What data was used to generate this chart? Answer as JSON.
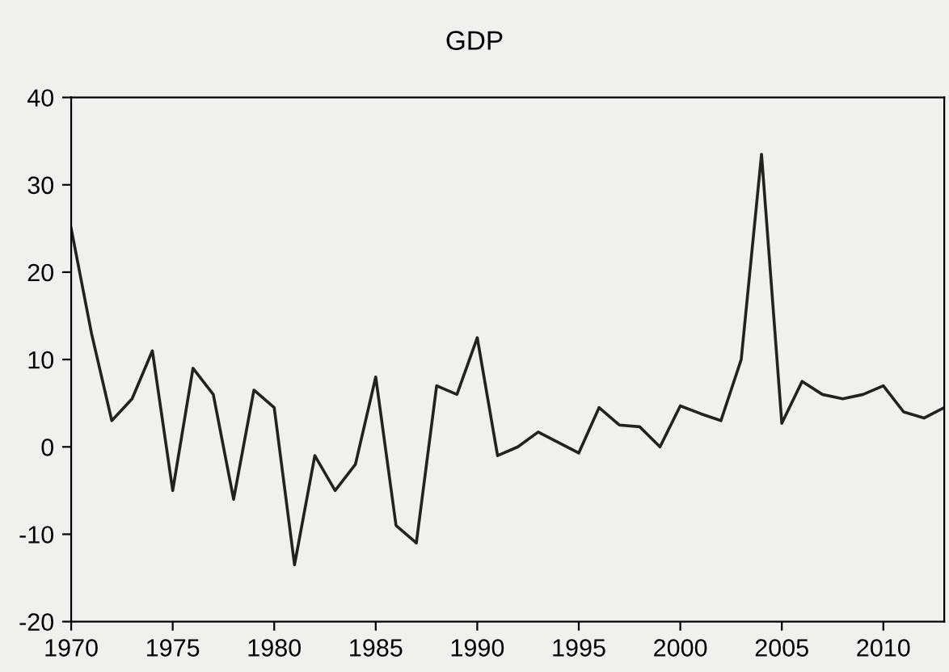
{
  "chart_data": {
    "type": "line",
    "title": "GDP",
    "x": [
      1970,
      1971,
      1972,
      1973,
      1974,
      1975,
      1976,
      1977,
      1978,
      1979,
      1980,
      1981,
      1982,
      1983,
      1984,
      1985,
      1986,
      1987,
      1988,
      1989,
      1990,
      1991,
      1992,
      1993,
      1994,
      1995,
      1996,
      1997,
      1998,
      1999,
      2000,
      2001,
      2002,
      2003,
      2004,
      2005,
      2006,
      2007,
      2008,
      2009,
      2010,
      2011,
      2012,
      2013
    ],
    "series": [
      {
        "color": "#222222",
        "values": [
          25,
          13,
          3,
          5.5,
          11,
          -5,
          9,
          6,
          -6,
          6.5,
          4.5,
          -13.5,
          -1,
          -5,
          -2,
          8,
          -9,
          -11,
          7,
          6,
          12.5,
          -1,
          0,
          1.7,
          0.5,
          -0.7,
          4.5,
          2.5,
          2.3,
          0,
          4.7,
          3.8,
          3,
          10,
          33.5,
          2.7,
          7.5,
          6,
          5.5,
          6,
          7,
          4,
          3.3,
          4.5
        ]
      }
    ],
    "xlim": [
      1970,
      2013
    ],
    "xticks": [
      1970,
      1975,
      1980,
      1985,
      1990,
      1995,
      2000,
      2005,
      2010
    ],
    "ylim": [
      -20,
      40
    ],
    "yticks": [
      -20,
      -10,
      0,
      10,
      20,
      30,
      40
    ],
    "grid": false,
    "legend": false,
    "marker": "none",
    "line_style": "solid"
  }
}
